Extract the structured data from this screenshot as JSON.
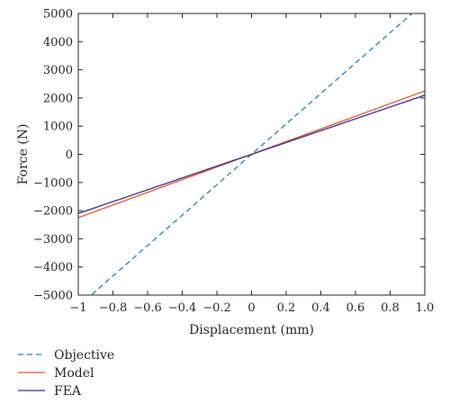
{
  "chart_data": {
    "type": "line",
    "title": "",
    "xlabel": "Displacement (mm)",
    "ylabel": "Force (N)",
    "xlim": [
      -1,
      1
    ],
    "ylim": [
      -5000,
      5000
    ],
    "x_ticks": [
      -1,
      -0.8,
      -0.6,
      -0.4,
      -0.2,
      0,
      0.2,
      0.4,
      0.6,
      0.8,
      1
    ],
    "x_tick_labels": [
      "−1",
      "−0.8",
      "−0.6",
      "−0.4",
      "−0.2",
      "0",
      "0.2",
      "0.4",
      "0.6",
      "0.8",
      "1.0"
    ],
    "y_ticks": [
      5000,
      4000,
      3000,
      2000,
      1000,
      0,
      -1000,
      -2000,
      -3000,
      -4000,
      -5000
    ],
    "y_tick_labels": [
      "5000",
      "4000",
      "3000",
      "2000",
      "1000",
      "0",
      "−1000",
      "−2000",
      "−3000",
      "−4000",
      "−5000"
    ],
    "grid": false,
    "legend_position": "bottom-left, outside plot",
    "series": [
      {
        "name": "Objective",
        "color": "#2a7ab8",
        "style": "dashed",
        "x": [
          -1,
          1
        ],
        "y": [
          -5400,
          5400
        ]
      },
      {
        "name": "Model",
        "color": "#e0522a",
        "style": "solid",
        "x": [
          -1,
          1
        ],
        "y": [
          -2250,
          2250
        ]
      },
      {
        "name": "FEA",
        "color": "#3a2a8c",
        "style": "solid",
        "x": [
          -1,
          1
        ],
        "y": [
          -2100,
          2100
        ]
      }
    ]
  }
}
